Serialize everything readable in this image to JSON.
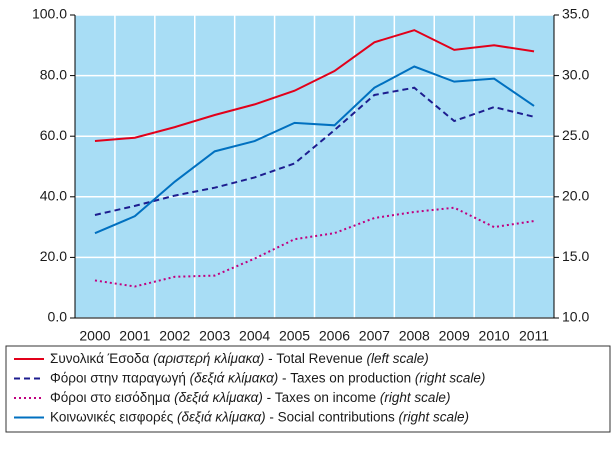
{
  "chart_data": {
    "type": "line",
    "categories": [
      "2000",
      "2001",
      "2002",
      "2003",
      "2004",
      "2005",
      "2006",
      "2007",
      "2008",
      "2009",
      "2010",
      "2011"
    ],
    "ylim": [
      0,
      100
    ],
    "yticks": [
      {
        "value": 0,
        "label": "0.0"
      },
      {
        "value": 20,
        "label": "20.0"
      },
      {
        "value": 40,
        "label": "40.0"
      },
      {
        "value": 60,
        "label": "60.0"
      },
      {
        "value": 80,
        "label": "80.0"
      },
      {
        "value": 100,
        "label": "100.0"
      }
    ],
    "y2lim": [
      10,
      35
    ],
    "y2ticks": [
      {
        "value": 10,
        "label": "10.0"
      },
      {
        "value": 15,
        "label": "15.0"
      },
      {
        "value": 20,
        "label": "20.0"
      },
      {
        "value": 25,
        "label": "25.0"
      },
      {
        "value": 30,
        "label": "30.0"
      },
      {
        "value": 35,
        "label": "35.0"
      }
    ],
    "grid": true,
    "background": "#a8ddf5",
    "series": [
      {
        "name": "Συνολικά Έσοδα (αριστερή κλίμακα) - Total Revenue (left scale)",
        "color": "#e2001a",
        "dash": "solid",
        "values": [
          58.4,
          59.5,
          63,
          67,
          70.5,
          75,
          81.5,
          91,
          95,
          88.5,
          90,
          88
        ]
      },
      {
        "name": "Φόροι στην παραγωγή (δεξιά κλίμακα) - Taxes on production (right scale)",
        "color": "#1d1d8f",
        "dash": "dashed",
        "axis": "y2",
        "values": [
          18.5,
          19.25,
          20.1,
          20.75,
          21.6,
          22.75,
          25.5,
          28.4,
          29.0,
          26.25,
          27.4,
          26.6
        ]
      },
      {
        "name": "Φόροι στο εισόδημα (δεξιά κλίμακα) - Taxes on income (right scale)",
        "color": "#c0007f",
        "dash": "dotted",
        "axis": "y2",
        "values": [
          13.1,
          12.6,
          13.4,
          13.5,
          14.9,
          16.5,
          17.0,
          18.25,
          18.75,
          19.1,
          17.5,
          18.0
        ]
      },
      {
        "name": "Κοινωνικές εισφορές (δεξιά κλίμακα) - Social contributions (right scale)",
        "color": "#0070c0",
        "dash": "solid",
        "axis": "y2",
        "values": [
          17.0,
          18.4,
          21.25,
          23.75,
          24.6,
          26.1,
          25.9,
          29.0,
          30.75,
          29.5,
          29.75,
          27.5
        ]
      }
    ]
  }
}
